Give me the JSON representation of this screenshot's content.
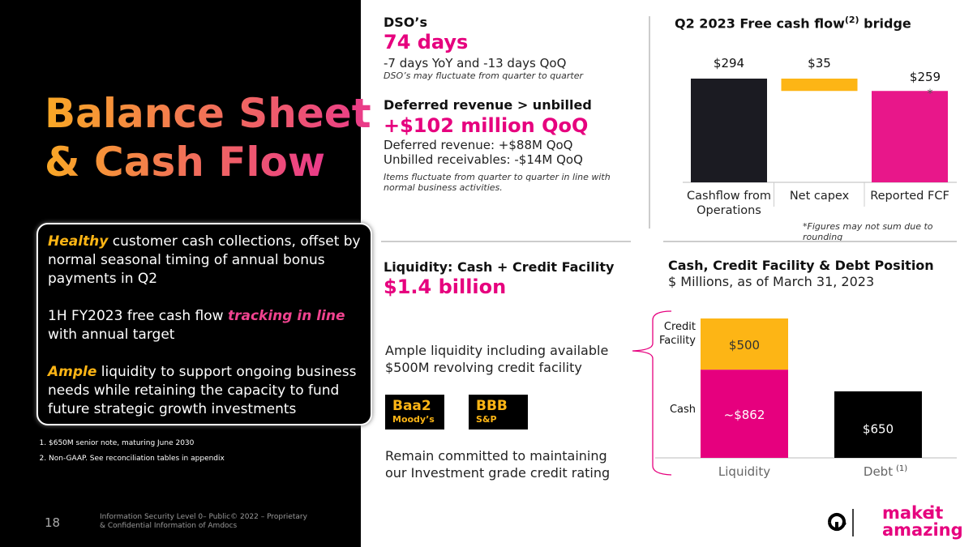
{
  "left": {
    "title_lines": [
      "Balance Sheet",
      "& Cash Flow"
    ],
    "callout": [
      [
        {
          "text": "Healthy",
          "style": "em-orange"
        },
        {
          "text": " customer cash collections, offset by normal seasonal timing of annual bonus payments in Q2"
        }
      ],
      [
        {
          "text": "1H FY2023 free cash flow "
        },
        {
          "text": "tracking in line",
          "style": "em-pink"
        },
        {
          "text": " with annual target"
        }
      ],
      [
        {
          "text": "Ample",
          "style": "em-orange"
        },
        {
          "text": " liquidity to support ongoing business needs while retaining the capacity to fund future strategic growth investments"
        }
      ]
    ],
    "footnotes": [
      "$650M senior note, maturing June 2030",
      "Non-GAAP. See reconciliation tables in appendix"
    ],
    "page_number": "18",
    "confidential": "Information Security Level 0– Public© 2022 – Proprietary & Confidential Information of Amdocs"
  },
  "dso": {
    "heading": "DSO’s",
    "value": "74 days",
    "detail": "-7 days YoY and -13 days QoQ",
    "note": "DSO’s may fluctuate from quarter to quarter"
  },
  "deferred": {
    "heading": "Deferred revenue > unbilled",
    "value": "+$102 million QoQ",
    "lines": [
      "Deferred revenue: +$88M QoQ",
      "Unbilled receivables: -$14M QoQ"
    ],
    "note": "Items fluctuate from quarter to quarter in line with normal business activities."
  },
  "liquidity": {
    "heading": "Liquidity: Cash + Credit Facility",
    "value": "$1.4 billion",
    "text1": "Ample liquidity including available $500M revolving credit facility",
    "ratings": [
      {
        "grade": "Baa2",
        "agency": "Moody’s"
      },
      {
        "grade": "BBB",
        "agency": "S&P"
      }
    ],
    "text2": "Remain committed to maintaining our Investment grade credit rating"
  },
  "logo": {
    "word1": "make",
    "word2": "it",
    "word3": "amazing"
  },
  "chart_data": [
    {
      "type": "waterfall",
      "title": "Q2 2023 Free cash flow",
      "title_sup": "(2)",
      "title_end": " bridge",
      "categories": [
        "Cashflow from Operations",
        "Net capex",
        "Reported FCF"
      ],
      "values": [
        294,
        -35,
        259
      ],
      "value_labels": [
        "$294",
        "$35",
        "$259"
      ],
      "measure": [
        "absolute",
        "relative",
        "total"
      ],
      "colors": [
        "#1b1b22",
        "#fdb515",
        "#e8178a"
      ],
      "annotation": "*",
      "footnote": "*Figures may not sum due to rounding"
    },
    {
      "type": "stacked_bar",
      "title": "Cash, Credit Facility & Debt Position",
      "subtitle": "$ Millions, as of March 31, 2023",
      "categories": [
        "Liquidity",
        "Debt"
      ],
      "category_note": [
        null,
        "(1)"
      ],
      "series": [
        {
          "name": "Cash",
          "color": "#e6007e",
          "values": [
            862,
            null
          ],
          "value_labels": [
            "~$862",
            null
          ]
        },
        {
          "name": "Credit Facility",
          "color": "#fdb515",
          "values": [
            500,
            null
          ],
          "value_labels": [
            "$500",
            null
          ]
        },
        {
          "color": "#000000",
          "values": [
            null,
            650
          ],
          "value_labels": [
            null,
            "$650"
          ]
        }
      ]
    }
  ]
}
